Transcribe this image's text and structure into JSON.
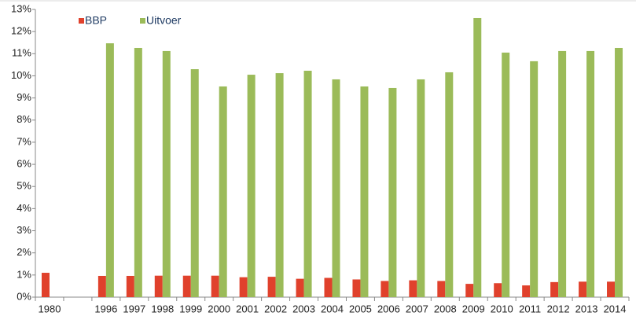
{
  "chart_data": {
    "type": "bar",
    "categories": [
      "1980",
      null,
      "1996",
      "1997",
      "1998",
      "1999",
      "2000",
      "2001",
      "2002",
      "2003",
      "2004",
      "2005",
      "2006",
      "2007",
      "2008",
      "2009",
      "2010",
      "2011",
      "2012",
      "2013",
      "2014"
    ],
    "series": [
      {
        "name": "BBP",
        "color": "#e0412c",
        "values": [
          1.1,
          null,
          0.96,
          0.96,
          0.97,
          0.97,
          0.97,
          0.9,
          0.92,
          0.83,
          0.87,
          0.8,
          0.73,
          0.76,
          0.73,
          0.6,
          0.63,
          0.53,
          0.68,
          0.7,
          0.7
        ]
      },
      {
        "name": "Uitvoer",
        "color": "#9bbb59",
        "values": [
          null,
          null,
          11.47,
          11.26,
          11.12,
          10.3,
          9.52,
          10.05,
          10.12,
          10.23,
          9.84,
          9.52,
          9.45,
          9.84,
          10.16,
          12.61,
          11.05,
          10.66,
          11.12,
          11.12,
          11.26
        ]
      }
    ],
    "ylim": [
      0,
      13
    ],
    "yticks": [
      {
        "value": 0,
        "label": "0%"
      },
      {
        "value": 1,
        "label": "1%"
      },
      {
        "value": 2,
        "label": "2%"
      },
      {
        "value": 3,
        "label": "3%"
      },
      {
        "value": 4,
        "label": "4%"
      },
      {
        "value": 5,
        "label": "5%"
      },
      {
        "value": 6,
        "label": "6%"
      },
      {
        "value": 7,
        "label": "7%"
      },
      {
        "value": 8,
        "label": "8%"
      },
      {
        "value": 9,
        "label": "9%"
      },
      {
        "value": 10,
        "label": "10%"
      },
      {
        "value": 11,
        "label": "11%"
      },
      {
        "value": 12,
        "label": "12%"
      },
      {
        "value": 13,
        "label": "13%"
      }
    ],
    "grid": false,
    "legend": "upper left"
  }
}
